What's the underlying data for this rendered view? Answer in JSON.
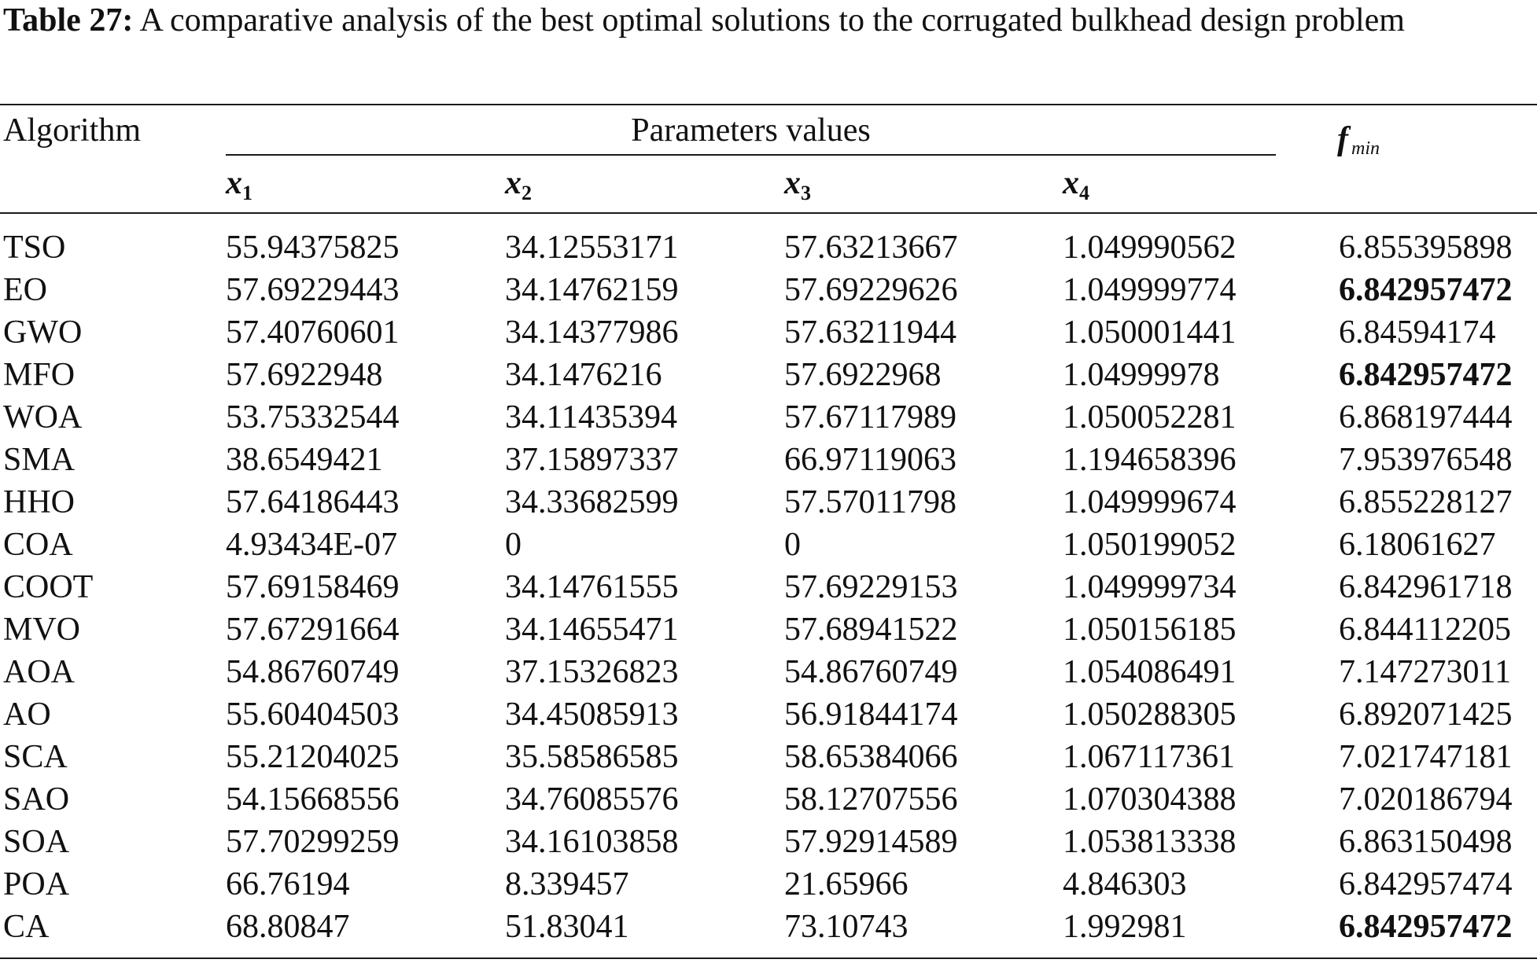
{
  "caption": {
    "label": "Table 27:",
    "text": " A comparative analysis of the best optimal solutions to the corrugated bulkhead design problem"
  },
  "header": {
    "algorithm": "Algorithm",
    "parameters": "Parameters values",
    "fmin_main": "f",
    "fmin_sub": "min",
    "x1_main": "x",
    "x1_sub": "1",
    "x2_main": "x",
    "x2_sub": "2",
    "x3_main": "x",
    "x3_sub": "3",
    "x4_main": "x",
    "x4_sub": "4"
  },
  "rows": [
    {
      "alg": "TSO",
      "x1": "55.94375825",
      "x2": "34.12553171",
      "x3": "57.63213667",
      "x4": "1.049990562",
      "f": "6.855395898",
      "best": false
    },
    {
      "alg": "EO",
      "x1": "57.69229443",
      "x2": "34.14762159",
      "x3": "57.69229626",
      "x4": "1.049999774",
      "f": "6.842957472",
      "best": true
    },
    {
      "alg": "GWO",
      "x1": "57.40760601",
      "x2": "34.14377986",
      "x3": "57.63211944",
      "x4": "1.050001441",
      "f": "6.84594174",
      "best": false
    },
    {
      "alg": "MFO",
      "x1": "57.6922948",
      "x2": "34.1476216",
      "x3": "57.6922968",
      "x4": "1.04999978",
      "f": "6.842957472",
      "best": true
    },
    {
      "alg": "WOA",
      "x1": "53.75332544",
      "x2": "34.11435394",
      "x3": "57.67117989",
      "x4": "1.050052281",
      "f": "6.868197444",
      "best": false
    },
    {
      "alg": "SMA",
      "x1": "38.6549421",
      "x2": "37.15897337",
      "x3": "66.97119063",
      "x4": "1.194658396",
      "f": "7.953976548",
      "best": false
    },
    {
      "alg": "HHO",
      "x1": "57.64186443",
      "x2": "34.33682599",
      "x3": "57.57011798",
      "x4": "1.049999674",
      "f": "6.855228127",
      "best": false
    },
    {
      "alg": "COA",
      "x1": "4.93434E-07",
      "x2": "0",
      "x3": "0",
      "x4": "1.050199052",
      "f": "6.18061627",
      "best": false
    },
    {
      "alg": "COOT",
      "x1": "57.69158469",
      "x2": "34.14761555",
      "x3": "57.69229153",
      "x4": "1.049999734",
      "f": "6.842961718",
      "best": false
    },
    {
      "alg": "MVO",
      "x1": "57.67291664",
      "x2": "34.14655471",
      "x3": "57.68941522",
      "x4": "1.050156185",
      "f": "6.844112205",
      "best": false
    },
    {
      "alg": "AOA",
      "x1": "54.86760749",
      "x2": "37.15326823",
      "x3": "54.86760749",
      "x4": "1.054086491",
      "f": "7.147273011",
      "best": false
    },
    {
      "alg": "AO",
      "x1": "55.60404503",
      "x2": "34.45085913",
      "x3": "56.91844174",
      "x4": "1.050288305",
      "f": "6.892071425",
      "best": false
    },
    {
      "alg": "SCA",
      "x1": "55.21204025",
      "x2": "35.58586585",
      "x3": "58.65384066",
      "x4": "1.067117361",
      "f": "7.021747181",
      "best": false
    },
    {
      "alg": "SAO",
      "x1": "54.15668556",
      "x2": "34.76085576",
      "x3": "58.12707556",
      "x4": "1.070304388",
      "f": "7.020186794",
      "best": false
    },
    {
      "alg": "SOA",
      "x1": "57.70299259",
      "x2": "34.16103858",
      "x3": "57.92914589",
      "x4": "1.053813338",
      "f": "6.863150498",
      "best": false
    },
    {
      "alg": "POA",
      "x1": "66.76194",
      "x2": "8.339457",
      "x3": "21.65966",
      "x4": "4.846303",
      "f": "6.842957474",
      "best": false
    },
    {
      "alg": "CA",
      "x1": "68.80847",
      "x2": "51.83041",
      "x3": "73.10743",
      "x4": "1.992981",
      "f": "6.842957472",
      "best": true
    }
  ]
}
